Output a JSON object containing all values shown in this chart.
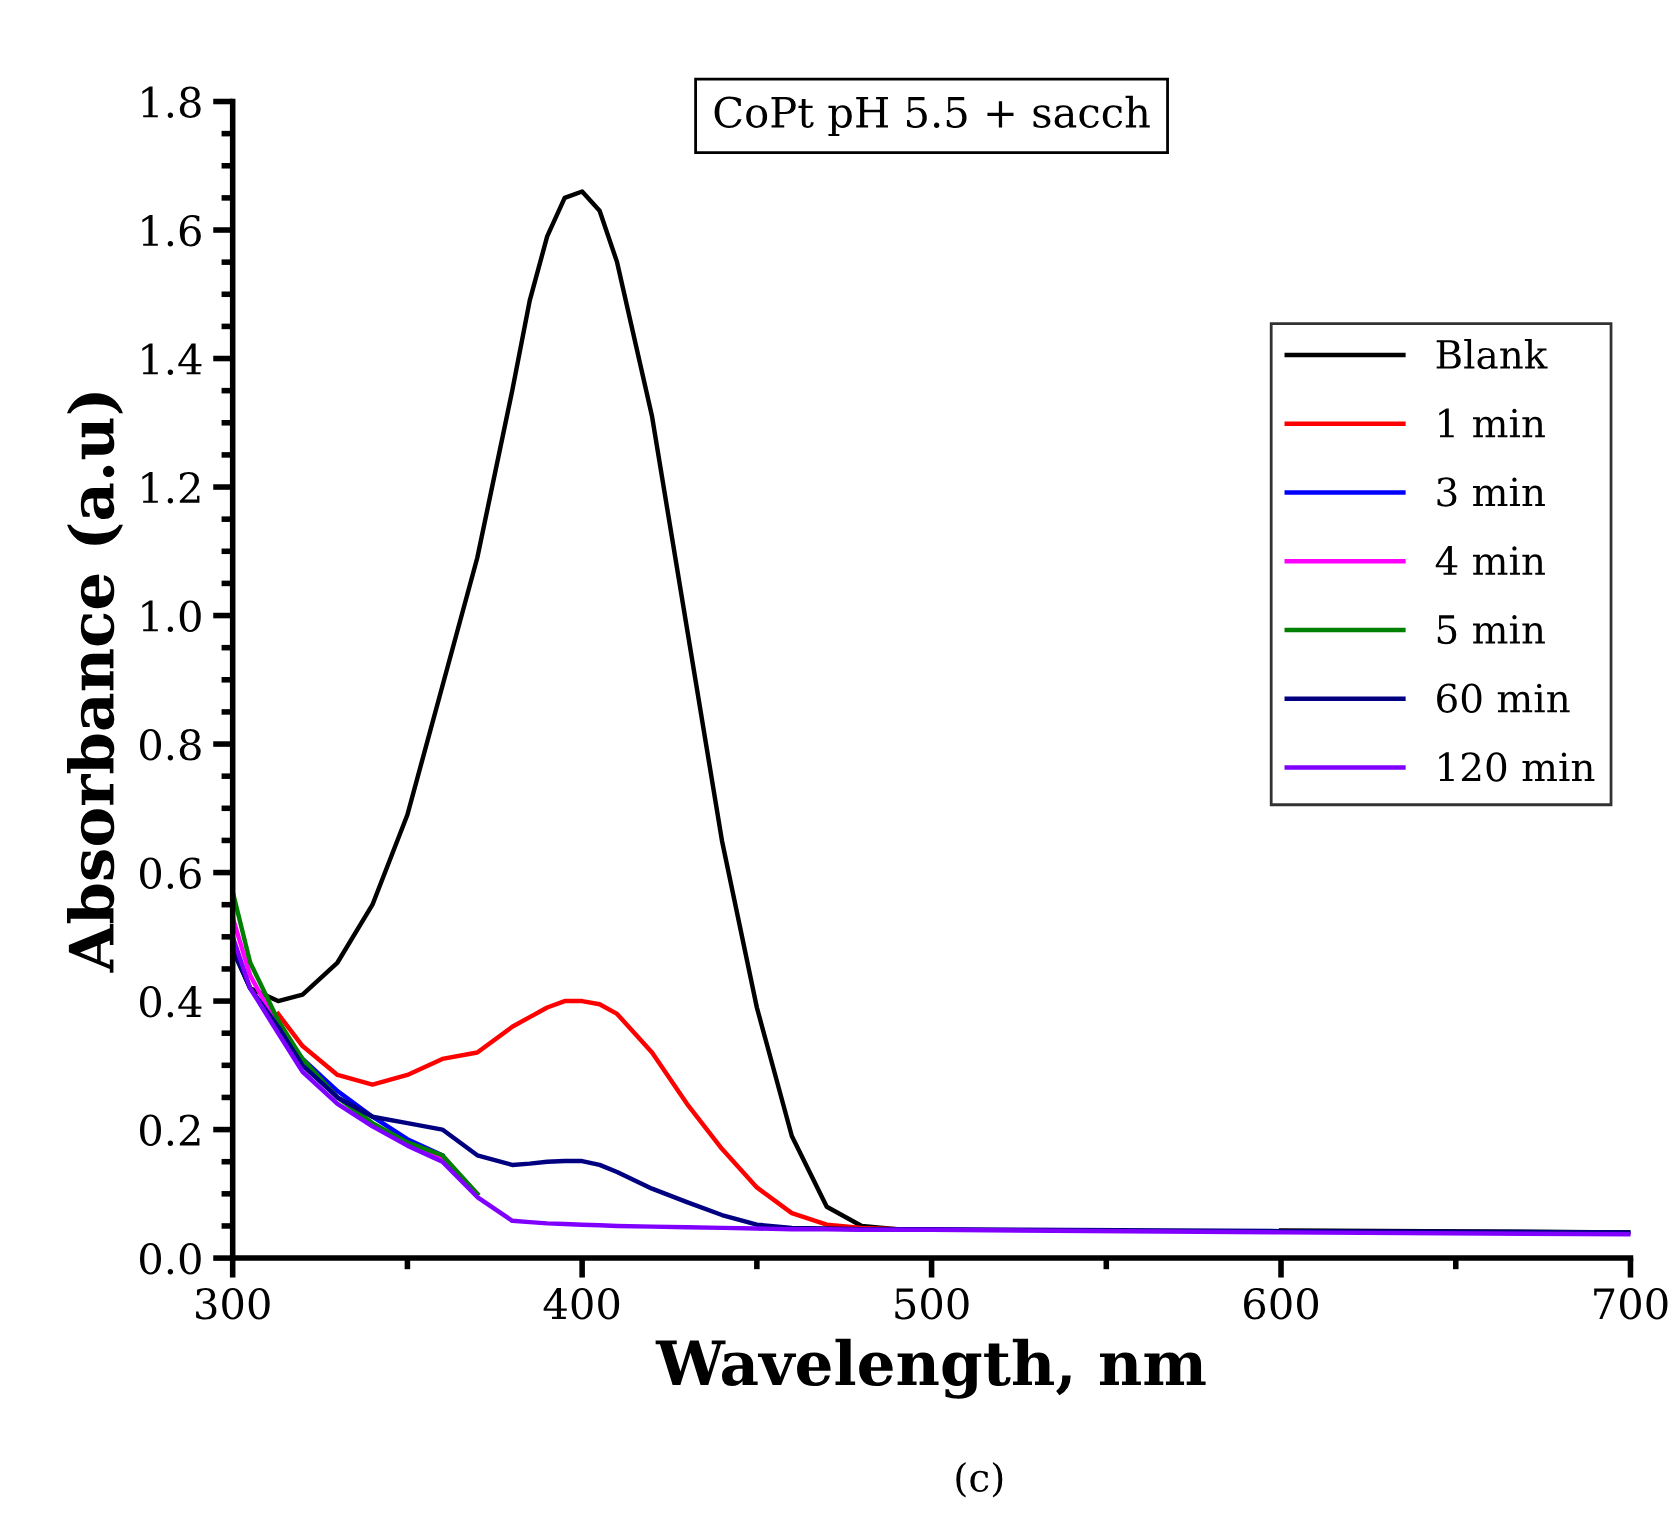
{
  "chart_data": {
    "type": "line",
    "title": "CoPt pH 5.5 + sacch",
    "xlabel": "Wavelength, nm",
    "ylabel": "Absorbance (a.u)",
    "annotations": [
      "(c)"
    ],
    "xlim": [
      300,
      700
    ],
    "ylim": [
      0,
      1.8
    ],
    "xticks": [
      300,
      400,
      500,
      600,
      700
    ],
    "yticks": [
      {
        "value": 0,
        "label": "0.0"
      },
      0.2,
      0.4,
      0.6,
      0.8,
      {
        "value": 1,
        "label": "1.0"
      },
      1.2,
      1.4,
      1.6,
      1.8
    ],
    "grid": false,
    "legend": "right",
    "marker": "none",
    "line_style": "solid",
    "x": [
      300,
      305,
      313,
      320,
      330,
      340,
      350,
      360,
      370,
      380,
      385,
      390,
      395,
      400,
      405,
      410,
      420,
      430,
      440,
      450,
      460,
      470,
      480,
      490,
      500,
      600,
      700
    ],
    "series": [
      {
        "name": "Blank",
        "color": "#000000",
        "values": [
          0.48,
          0.42,
          0.4,
          0.41,
          0.46,
          0.55,
          0.69,
          0.89,
          1.09,
          1.35,
          1.49,
          1.59,
          1.65,
          1.66,
          1.63,
          1.55,
          1.31,
          0.98,
          0.65,
          0.39,
          0.19,
          0.08,
          0.05,
          0.045,
          null,
          0.043,
          0.04
        ]
      },
      {
        "name": "1 min",
        "color": "#ff0000",
        "values": [
          null,
          null,
          0.38,
          0.33,
          0.285,
          0.27,
          0.285,
          0.31,
          0.32,
          0.36,
          0.375,
          0.39,
          0.4,
          0.4,
          0.395,
          0.38,
          0.32,
          0.24,
          0.17,
          0.11,
          0.07,
          0.052,
          0.047,
          0.045,
          null,
          null,
          null
        ]
      },
      {
        "name": "3 min",
        "color": "#0000ff",
        "values": [
          null,
          null,
          null,
          0.31,
          0.26,
          0.22,
          0.185,
          0.16,
          null,
          null,
          null,
          null,
          null,
          null,
          null,
          null,
          null,
          null,
          null,
          null,
          null,
          null,
          null,
          null,
          null,
          null,
          null
        ]
      },
      {
        "name": "4 min",
        "color": "#ff00ff",
        "values": [
          0.53,
          0.44,
          0.36,
          null,
          null,
          null,
          0.18,
          0.155,
          0.1,
          null,
          null,
          null,
          null,
          null,
          null,
          null,
          null,
          null,
          null,
          null,
          null,
          null,
          null,
          null,
          null,
          null,
          null
        ]
      },
      {
        "name": "5 min",
        "color": "#008000",
        "values": [
          0.57,
          0.46,
          0.37,
          0.31,
          0.25,
          0.21,
          0.18,
          0.16,
          0.1,
          null,
          null,
          null,
          null,
          null,
          null,
          null,
          null,
          null,
          null,
          null,
          null,
          null,
          null,
          null,
          null,
          null,
          null
        ]
      },
      {
        "name": "60 min",
        "color": "#000080",
        "values": [
          0.48,
          0.42,
          0.36,
          0.3,
          0.25,
          0.22,
          0.21,
          0.2,
          0.16,
          0.145,
          0.147,
          0.15,
          0.151,
          0.151,
          0.145,
          0.134,
          0.108,
          0.087,
          0.067,
          0.052,
          0.047,
          0.046,
          0.045,
          0.045,
          0.045,
          0.042,
          0.04
        ]
      },
      {
        "name": "120 min",
        "color": "#8000ff",
        "values": [
          0.5,
          0.42,
          0.35,
          0.29,
          0.24,
          0.205,
          0.175,
          0.15,
          0.095,
          0.058,
          0.056,
          0.054,
          0.053,
          0.052,
          0.051,
          0.05,
          0.049,
          0.048,
          0.047,
          0.046,
          0.045,
          0.045,
          0.044,
          0.044,
          0.044,
          0.04,
          0.037
        ]
      }
    ]
  }
}
